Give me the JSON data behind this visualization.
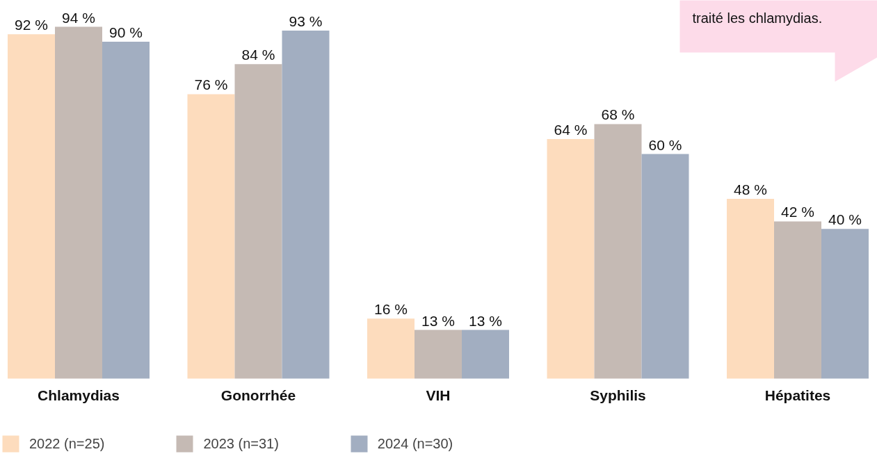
{
  "chart_data": {
    "type": "bar",
    "categories": [
      "Chlamydias",
      "Gonorrhée",
      "VIH",
      "Syphilis",
      "Hépatites"
    ],
    "series": [
      {
        "name": "2022 (n=25)",
        "color": "#fddcbd",
        "values": [
          92,
          76,
          16,
          64,
          48
        ],
        "value_labels": [
          "92 %",
          "76 %",
          "16 %",
          "64 %",
          "48 %"
        ]
      },
      {
        "name": "2023 (n=31)",
        "color": "#c5bab4",
        "values": [
          94,
          84,
          13,
          68,
          42
        ],
        "value_labels": [
          "94 %",
          "84 %",
          "13 %",
          "68 %",
          "42 %"
        ]
      },
      {
        "name": "2024 (n=30)",
        "color": "#a2aec1",
        "values": [
          90,
          93,
          13,
          60,
          40
        ],
        "value_labels": [
          "90 %",
          "93 %",
          "13 %",
          "60 %",
          "40 %"
        ]
      }
    ],
    "grid": false,
    "legend": "bottom left",
    "annotations": [
      "traité les chlamydias."
    ]
  }
}
